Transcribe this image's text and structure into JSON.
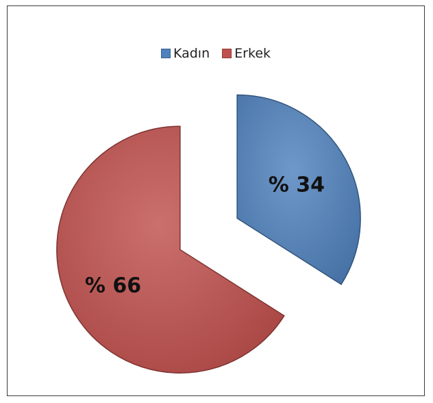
{
  "chart_data": {
    "type": "pie",
    "labels": [
      "Kadın",
      "Erkek"
    ],
    "values": [
      34,
      66
    ],
    "data_labels": [
      "% 34",
      "% 66"
    ],
    "colors": [
      "#4f81bd",
      "#c0504d"
    ],
    "legend_position": "top",
    "exploded": true
  }
}
